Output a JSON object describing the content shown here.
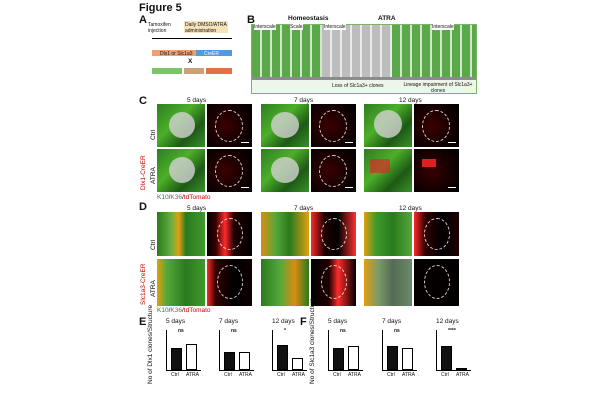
{
  "figure_title": "Figure 5",
  "panels": {
    "A": {
      "label": "A",
      "texts": [
        "Tamoxifen injection",
        "Daily DMSO/ATRA administration",
        "Dlx1 or Slc1a3",
        "CreER",
        "X"
      ]
    },
    "B": {
      "label": "B",
      "homeostasis": "Homeostasis",
      "atra": "ATRA",
      "interscale1": "Interscale",
      "scale": "Scale",
      "interscale2": "Interscale",
      "interscale3": "Interscale",
      "caption1": "Loss of Slc1a3+ clones",
      "caption2": "Lineage impairment of Slc1a3+ clones"
    },
    "C": {
      "label": "C",
      "days": [
        "5 days",
        "7 days",
        "12 days"
      ],
      "rows": [
        "Ctrl",
        "ATRA"
      ],
      "side_label": "Dlx1-CreER",
      "bottom_label": "K10/K36/tdTomato"
    },
    "D": {
      "label": "D",
      "days": [
        "5 days",
        "7 days",
        "12 days"
      ],
      "rows": [
        "Ctrl",
        "ATRA"
      ],
      "side_label": "Slc1a3-CreER",
      "bottom_label": "K10/K36/tdTomato"
    },
    "E": {
      "label": "E",
      "ylabel": "No of Dlx1 clones/Structure"
    },
    "F": {
      "label": "F",
      "ylabel": "No of Slc1a3 clones/Structure"
    }
  },
  "chart_data": [
    {
      "type": "bar",
      "panel": "E",
      "title": "5 days",
      "categories": [
        "Ctrl",
        "ATRA"
      ],
      "values": [
        5.5,
        6.5
      ],
      "ylim": [
        0,
        10
      ],
      "annotation": "ns",
      "ylabel": "No of Dlx1 clones/Structure"
    },
    {
      "type": "bar",
      "panel": "E",
      "title": "7 days",
      "categories": [
        "Ctrl",
        "ATRA"
      ],
      "values": [
        4.5,
        4.5
      ],
      "ylim": [
        0,
        10
      ],
      "annotation": "ns",
      "ylabel": "No of Dlx1 clones/Structure"
    },
    {
      "type": "bar",
      "panel": "E",
      "title": "12 days",
      "categories": [
        "Ctrl",
        "ATRA"
      ],
      "values": [
        9.5,
        4.5
      ],
      "ylim": [
        0,
        15
      ],
      "annotation": "*",
      "ylabel": "No of Dlx1 clones/Structure"
    },
    {
      "type": "bar",
      "panel": "F",
      "title": "5 days",
      "categories": [
        "Ctrl",
        "ATRA"
      ],
      "values": [
        11,
        12
      ],
      "ylim": [
        0,
        20
      ],
      "annotation": "ns",
      "ylabel": "No of Slc1a3 clones/Structure"
    },
    {
      "type": "bar",
      "panel": "F",
      "title": "7 days",
      "categories": [
        "Ctrl",
        "ATRA"
      ],
      "values": [
        12,
        11
      ],
      "ylim": [
        0,
        20
      ],
      "annotation": "ns",
      "ylabel": "No of Slc1a3 clones/Structure"
    },
    {
      "type": "bar",
      "panel": "F",
      "title": "12 days",
      "categories": [
        "Ctrl",
        "ATRA"
      ],
      "values": [
        6,
        0.5
      ],
      "ylim": [
        0,
        10
      ],
      "annotation": "****",
      "ylabel": "No of Slc1a3 clones/Structure"
    }
  ]
}
